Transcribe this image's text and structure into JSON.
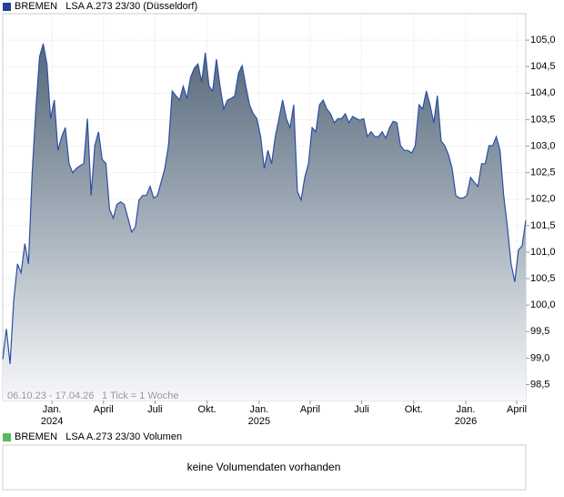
{
  "chart_data": {
    "type": "area",
    "title": "BREMEN   LSA A.273 23/30 (Düsseldorf)",
    "date_range": "06.10.23 - 17.04.26",
    "tick_note": "1 Tick = 1 Woche",
    "xlim": [
      "2023-10-06",
      "2026-04-17"
    ],
    "xticks": [
      {
        "value": "2024-01-01",
        "label": "Jan.",
        "year": "2024"
      },
      {
        "value": "2024-04-01",
        "label": "April"
      },
      {
        "value": "2024-07-01",
        "label": "Juli"
      },
      {
        "value": "2024-10-01",
        "label": "Okt."
      },
      {
        "value": "2025-01-01",
        "label": "Jan.",
        "year": "2025"
      },
      {
        "value": "2025-04-01",
        "label": "April"
      },
      {
        "value": "2025-07-01",
        "label": "Juli"
      },
      {
        "value": "2025-10-01",
        "label": "Okt."
      },
      {
        "value": "2026-01-01",
        "label": "Jan.",
        "year": "2026"
      },
      {
        "value": "2026-04-01",
        "label": "April"
      }
    ],
    "ylim": [
      98.2,
      105.5
    ],
    "yticks": [
      {
        "value": 98.5,
        "label": "98,5"
      },
      {
        "value": 99,
        "label": "99,0"
      },
      {
        "value": 99.5,
        "label": "99,5"
      },
      {
        "value": 100,
        "label": "100,0"
      },
      {
        "value": 100.5,
        "label": "100,5"
      },
      {
        "value": 101,
        "label": "101,0"
      },
      {
        "value": 101.5,
        "label": "101,5"
      },
      {
        "value": 102,
        "label": "102,0"
      },
      {
        "value": 102.5,
        "label": "102,5"
      },
      {
        "value": 103,
        "label": "103,0"
      },
      {
        "value": 103.5,
        "label": "103,5"
      },
      {
        "value": 104,
        "label": "104,0"
      },
      {
        "value": 104.5,
        "label": "104,5"
      },
      {
        "value": 105,
        "label": "105,0"
      }
    ],
    "grid": true,
    "color": "#2b4fa3",
    "values": [
      98.98,
      99.55,
      98.89,
      100.09,
      100.78,
      100.61,
      101.16,
      100.78,
      102.5,
      103.7,
      104.69,
      104.93,
      104.55,
      103.52,
      103.87,
      102.92,
      103.18,
      103.35,
      102.67,
      102.5,
      102.58,
      102.63,
      102.67,
      103.52,
      102.07,
      103.01,
      103.27,
      102.75,
      102.67,
      101.81,
      101.64,
      101.9,
      101.95,
      101.9,
      101.64,
      101.38,
      101.47,
      101.98,
      102.07,
      102.07,
      102.24,
      102.02,
      102.07,
      102.32,
      102.58,
      103.01,
      104.04,
      103.95,
      103.87,
      104.13,
      103.9,
      104.3,
      104.47,
      104.55,
      104.21,
      104.76,
      104.13,
      104.04,
      104.64,
      104.13,
      103.7,
      103.87,
      103.9,
      103.95,
      104.38,
      104.52,
      104.13,
      103.78,
      103.61,
      103.52,
      103.18,
      102.58,
      102.92,
      102.67,
      103.18,
      103.52,
      103.87,
      103.52,
      103.35,
      103.78,
      102.15,
      101.98,
      102.41,
      102.67,
      103.35,
      103.27,
      103.78,
      103.87,
      103.7,
      103.61,
      103.44,
      103.52,
      103.52,
      103.61,
      103.44,
      103.56,
      103.52,
      103.49,
      103.52,
      103.18,
      103.27,
      103.18,
      103.18,
      103.27,
      103.15,
      103.35,
      103.47,
      103.44,
      103.01,
      102.92,
      102.92,
      102.87,
      103.01,
      103.78,
      103.7,
      104.04,
      103.78,
      103.44,
      103.95,
      103.1,
      103.01,
      102.84,
      102.58,
      102.07,
      102.02,
      102.02,
      102.07,
      102.41,
      102.32,
      102.24,
      102.67,
      102.67,
      103.01,
      103.01,
      103.18,
      102.92,
      102.07,
      101.47,
      100.78,
      100.44,
      101.04,
      101.12,
      101.6
    ]
  },
  "volume_panel": {
    "title": "BREMEN   LSA A.273 23/30 Volumen",
    "message": "keine Volumendaten vorhanden"
  }
}
